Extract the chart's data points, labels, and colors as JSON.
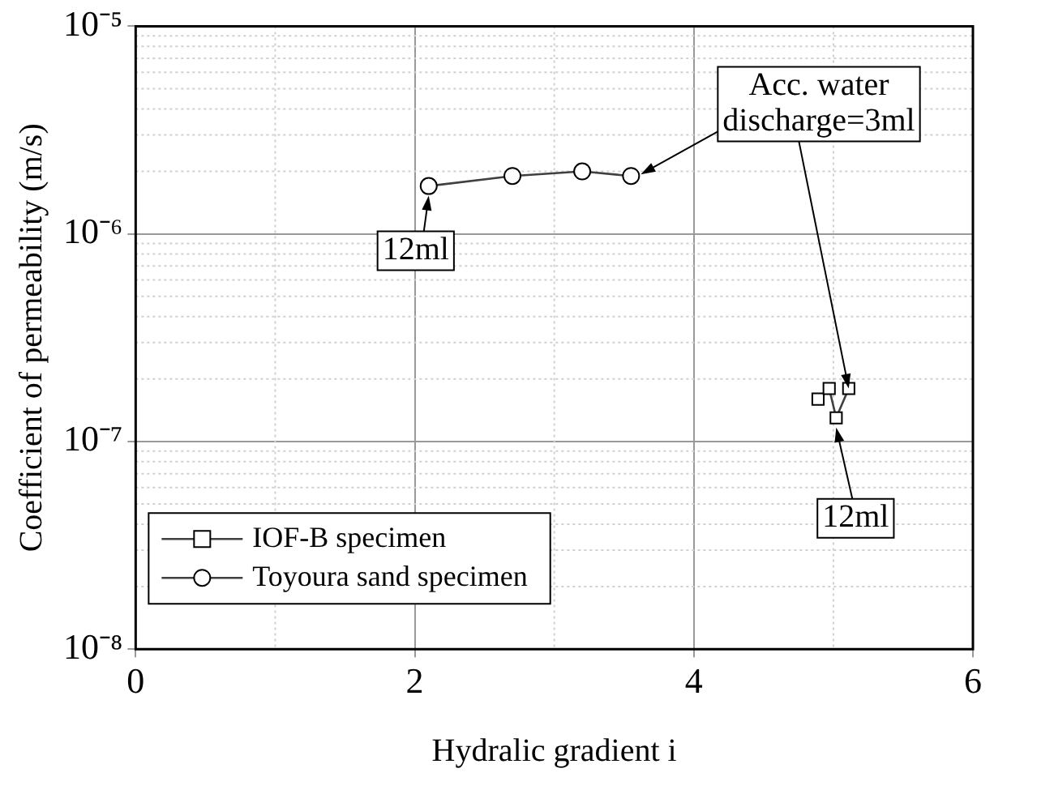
{
  "chart_data": {
    "type": "line",
    "xlabel": "Hydralic gradient i",
    "ylabel": "Coefficient of permeability (m/s)",
    "xlim": [
      0,
      6
    ],
    "xticks": [
      0,
      2,
      4,
      6
    ],
    "ylim": [
      1e-08,
      1e-05
    ],
    "yticks": [
      {
        "value": 1e-08,
        "label": "10⁻⁸"
      },
      {
        "value": 1e-07,
        "label": "10⁻⁷"
      },
      {
        "value": 1e-06,
        "label": "10⁻⁶"
      },
      {
        "value": 1e-05,
        "label": "10⁻⁵"
      }
    ],
    "log": "y",
    "grid": true,
    "legend": "bottom left",
    "line_style": "solid",
    "series": [
      {
        "name": "IOF-B specimen",
        "color": "#404040",
        "marker": "square",
        "x": [
          4.89,
          4.97,
          5.02,
          5.11
        ],
        "values": [
          1.6e-07,
          1.8e-07,
          1.3e-07,
          1.8e-07
        ]
      },
      {
        "name": "Toyoura sand specimen",
        "color": "#404040",
        "marker": "circle",
        "x": [
          2.1,
          2.7,
          3.2,
          3.55
        ],
        "values": [
          1.7e-06,
          1.9e-06,
          2e-06,
          1.9e-06
        ]
      }
    ],
    "annotations": [
      {
        "text": "Acc. water discharge=3ml",
        "x": 5.11,
        "y": 1.8e-07
      },
      {
        "text": "12ml",
        "x": 2.1,
        "y": 1.7e-06
      },
      {
        "text": "12ml",
        "x": 5.02,
        "y": 1.3e-07
      }
    ]
  }
}
